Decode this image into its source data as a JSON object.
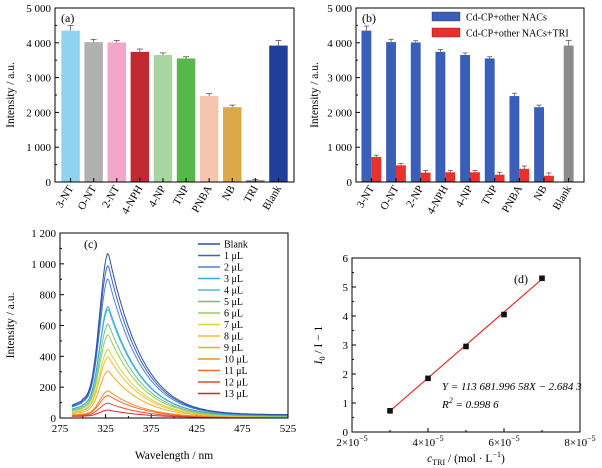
{
  "chart_data": [
    {
      "panel": "(a)",
      "type": "bar",
      "ylabel": "Intensity / a.u.",
      "ylim": [
        0,
        5000
      ],
      "yticks": [
        0,
        1000,
        2000,
        3000,
        4000,
        5000
      ],
      "ytick_labels": [
        "0",
        "1 000",
        "2 000",
        "3 000",
        "4 000",
        "5 000"
      ],
      "categories": [
        "3-NT",
        "O-NT",
        "2-NT",
        "4-NPH",
        "4-NP",
        "TNP",
        "PNBA",
        "NB",
        "TRI",
        "Blank"
      ],
      "values": [
        4350,
        4020,
        4010,
        3740,
        3650,
        3550,
        2470,
        2150,
        50,
        3920
      ],
      "errors": [
        150,
        80,
        60,
        80,
        60,
        50,
        70,
        60,
        20,
        150
      ],
      "colors": [
        "#8fd3f0",
        "#b0b0b0",
        "#f2a7c8",
        "#c0292f",
        "#a9d6a0",
        "#55b848",
        "#f6c5ae",
        "#dca84a",
        "#7f7f7f",
        "#1f3f9a"
      ]
    },
    {
      "panel": "(b)",
      "type": "bar",
      "ylabel": "Intensity / a.u.",
      "ylim": [
        0,
        5000
      ],
      "yticks": [
        0,
        1000,
        2000,
        3000,
        4000,
        5000
      ],
      "ytick_labels": [
        "0",
        "1 000",
        "2 000",
        "3 000",
        "4 000",
        "5 000"
      ],
      "categories": [
        "3-NT",
        "O-NT",
        "2-NP",
        "4-NPH",
        "4-NP",
        "TNP",
        "PNBA",
        "NB",
        "Blank"
      ],
      "series": [
        {
          "name": "Cd-CP+other NACs",
          "color": "#3a5fb8",
          "values": [
            4350,
            4020,
            4010,
            3740,
            3650,
            3550,
            2470,
            2150,
            null
          ],
          "errors": [
            130,
            80,
            50,
            70,
            60,
            50,
            80,
            60,
            null
          ]
        },
        {
          "name": "Cd-CP+other NACs+TRI",
          "color": "#e8302c",
          "values": [
            720,
            480,
            270,
            280,
            280,
            210,
            380,
            180,
            null
          ],
          "errors": [
            50,
            50,
            60,
            50,
            50,
            70,
            80,
            80,
            null
          ]
        }
      ],
      "blank": {
        "value": 3920,
        "error": 150,
        "color": "#8a8a8a"
      }
    },
    {
      "panel": "(c)",
      "type": "line",
      "xlabel": "Wavelength / nm",
      "ylabel": "Intensity / a.u.",
      "xlim": [
        275,
        525
      ],
      "ylim": [
        0,
        1200
      ],
      "xticks": [
        275,
        325,
        375,
        425,
        475,
        525
      ],
      "xtick_labels": [
        "275",
        "325",
        "375",
        "425",
        "475",
        "525"
      ],
      "yticks": [
        0,
        200,
        400,
        600,
        800,
        1000,
        1200
      ],
      "ytick_labels": [
        "0",
        "200",
        "400",
        "600",
        "800",
        "1 000",
        "1 200"
      ],
      "series": [
        {
          "name": "Blank",
          "peak": 1065,
          "color": "#2c4ea0"
        },
        {
          "name": "1 μL",
          "peak": 985,
          "color": "#3a62c0"
        },
        {
          "name": "2 μL",
          "peak": 900,
          "color": "#4a82d8"
        },
        {
          "name": "3 μL",
          "peak": 720,
          "color": "#3fa9d6"
        },
        {
          "name": "4 μL",
          "peak": 700,
          "color": "#4cc0c8"
        },
        {
          "name": "5 μL",
          "peak": 605,
          "color": "#6cc48a"
        },
        {
          "name": "6 μL",
          "peak": 535,
          "color": "#9acd55"
        },
        {
          "name": "7 μL",
          "peak": 440,
          "color": "#d2d642"
        },
        {
          "name": "8 μL",
          "peak": 390,
          "color": "#f0c030"
        },
        {
          "name": "9 μL",
          "peak": 300,
          "color": "#f5a82a"
        },
        {
          "name": "10 μL",
          "peak": 170,
          "color": "#f08a28"
        },
        {
          "name": "11 μL",
          "peak": 140,
          "color": "#ec6a2c"
        },
        {
          "name": "12 μL",
          "peak": 90,
          "color": "#e44a2c"
        },
        {
          "name": "13 μL",
          "peak": 45,
          "color": "#d8262c"
        }
      ]
    },
    {
      "panel": "(d)",
      "type": "scatter",
      "xlabel_main": "c",
      "xlabel_sub": "TRI",
      "xlabel_rest": " / (mol · L",
      "xlabel_sup": "−1",
      "xlabel_end": ")",
      "ylabel_main": "I",
      "ylabel_sub": "0",
      "ylabel_rest": " / I − 1",
      "xlim": [
        2e-05,
        8e-05
      ],
      "ylim": [
        0,
        6
      ],
      "xticks": [
        2e-05,
        4e-05,
        6e-05,
        8e-05
      ],
      "xtick_base": "×10",
      "xtick_mantissas": [
        "2",
        "4",
        "6",
        "8"
      ],
      "xtick_exp": "−5",
      "yticks": [
        0,
        1,
        2,
        3,
        4,
        5,
        6
      ],
      "ytick_labels": [
        "0",
        "1",
        "2",
        "3",
        "4",
        "5",
        "6"
      ],
      "x": [
        3e-05,
        4e-05,
        5e-05,
        6e-05,
        7e-05
      ],
      "y": [
        0.73,
        1.85,
        2.95,
        4.05,
        5.3
      ],
      "fit": {
        "slope": 113681.99658,
        "intercept": -2.6843
      },
      "equation": "Y = 113 681.996 58X − 2.684 3",
      "r2_main": "R",
      "r2_sup": "2",
      "r2_value": " = 0.998 6",
      "marker_color": "#111111",
      "line_color": "#e8302c"
    }
  ]
}
